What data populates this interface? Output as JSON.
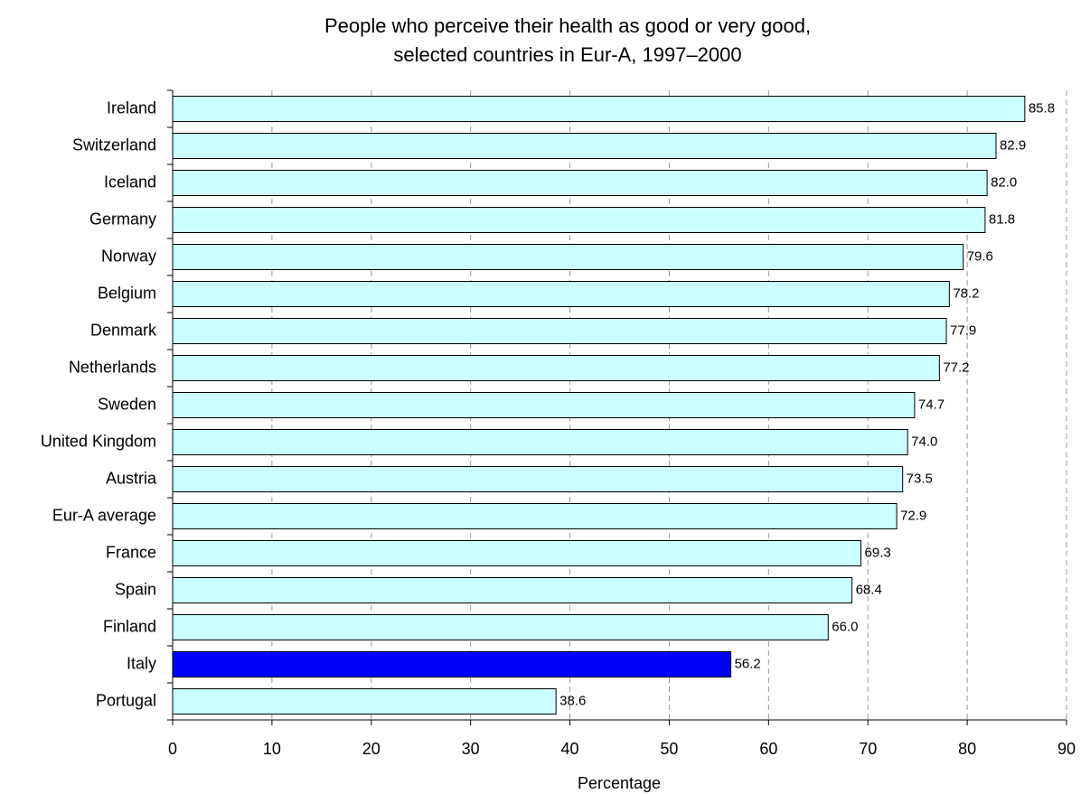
{
  "chart_data": {
    "type": "hbar",
    "title": [
      "People who perceive their health as good or very good,",
      "selected countries in Eur-A, 1997–2000"
    ],
    "x_label": "Percentage",
    "categories": [
      "Ireland",
      "Switzerland",
      "Iceland",
      "Germany",
      "Norway",
      "Belgium",
      "Denmark",
      "Netherlands",
      "Sweden",
      "United Kingdom",
      "Austria",
      "Eur-A average",
      "France",
      "Spain",
      "Finland",
      "Italy",
      "Portugal"
    ],
    "values": [
      85.8,
      82.9,
      82,
      81.8,
      79.6,
      78.2,
      77.9,
      77.2,
      74.7,
      74,
      73.5,
      72.9,
      69.3,
      68.4,
      66,
      56.2,
      38.6
    ],
    "value_labels": [
      "85.8",
      "82.9",
      "82.0",
      "81.8",
      "79.6",
      "78.2",
      "77.9",
      "77.2",
      "74.7",
      "74.0",
      "73.5",
      "72.9",
      "69.3",
      "68.4",
      "66.0",
      "56.2",
      "38.6"
    ],
    "colors": [
      "#ccffff",
      "#ccffff",
      "#ccffff",
      "#ccffff",
      "#ccffff",
      "#ccffff",
      "#ccffff",
      "#ccffff",
      "#ccffff",
      "#ccffff",
      "#ccffff",
      "#ccffff",
      "#ccffff",
      "#ccffff",
      "#ccffff",
      "#0000ff",
      "#ccffff"
    ],
    "xlim": [
      0,
      90
    ],
    "xticks": [
      0,
      10,
      20,
      30,
      40,
      50,
      60,
      70,
      80,
      90
    ],
    "grid": true
  }
}
